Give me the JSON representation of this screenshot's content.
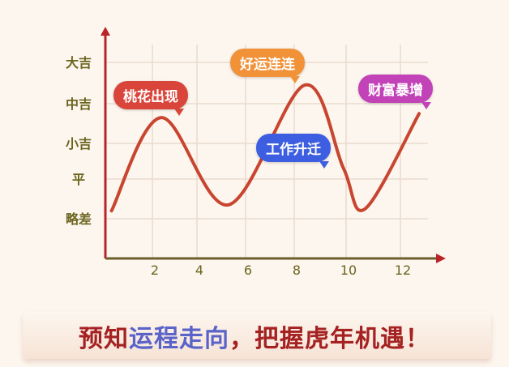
{
  "chart_data": {
    "type": "line",
    "x_ticks": [
      2,
      4,
      6,
      8,
      10,
      12
    ],
    "y_categories": [
      "略差",
      "平",
      "小吉",
      "中吉",
      "大吉"
    ],
    "series": [
      {
        "points": [
          [
            0.2,
            1.2
          ],
          [
            2.4,
            3.65
          ],
          [
            5.3,
            1.35
          ],
          [
            8.4,
            4.45
          ],
          [
            9.9,
            2.3
          ],
          [
            10.7,
            1.25
          ],
          [
            12.7,
            3.75
          ]
        ]
      }
    ],
    "annotations": [
      {
        "text": "桃花出现",
        "color": "#d9453a"
      },
      {
        "text": "好运连连",
        "color": "#f29238"
      },
      {
        "text": "工作升迁",
        "color": "#3d5ee0"
      },
      {
        "text": "财富暴增",
        "color": "#c242b8"
      }
    ],
    "grid": true,
    "line_color": "#c8452f",
    "axis_color": "#6b5f2a",
    "arrow_color": "#b8242a"
  },
  "slogan": {
    "part1": "预知",
    "part2": "运程走向",
    "part3": "，把握虎年机遇！"
  }
}
